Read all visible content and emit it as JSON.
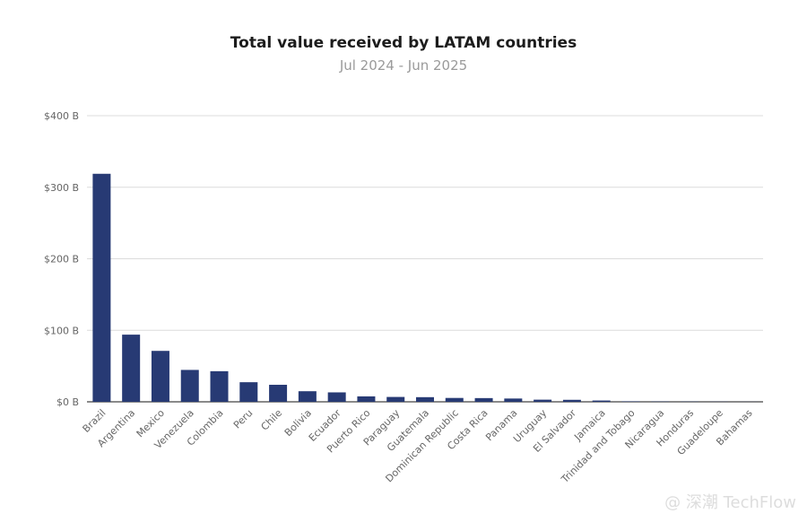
{
  "chart_data": {
    "type": "bar",
    "title": "Total value received by LATAM countries",
    "subtitle": "Jul 2024 - Jun 2025",
    "xlabel": "",
    "ylabel": "",
    "ylim": [
      0,
      400
    ],
    "yticks": [
      {
        "value": 0,
        "label": "$0 B"
      },
      {
        "value": 100,
        "label": "$100 B"
      },
      {
        "value": 200,
        "label": "$200 B"
      },
      {
        "value": 300,
        "label": "$300 B"
      },
      {
        "value": 400,
        "label": "$400 B"
      }
    ],
    "grid": true,
    "bar_color": "#273a74",
    "categories": [
      "Brazil",
      "Argentina",
      "Mexico",
      "Venezuela",
      "Colombia",
      "Peru",
      "Chile",
      "Bolivia",
      "Ecuador",
      "Puerto Rico",
      "Paraguay",
      "Guatemala",
      "Dominican Republic",
      "Costa Rica",
      "Panama",
      "Uruguay",
      "El Salvador",
      "Jamaica",
      "Trinidad and Tobago",
      "Nicaragua",
      "Honduras",
      "Guadeloupe",
      "Bahamas"
    ],
    "values": [
      318.8,
      93.9,
      71.2,
      44.6,
      42.8,
      27.4,
      23.8,
      14.8,
      13.2,
      7.6,
      6.8,
      6.5,
      5.4,
      5.2,
      4.6,
      3.0,
      2.8,
      1.8,
      0.6,
      0.4,
      0.3,
      0.2,
      0.1
    ]
  },
  "watermark": "@ 深潮 TechFlow"
}
